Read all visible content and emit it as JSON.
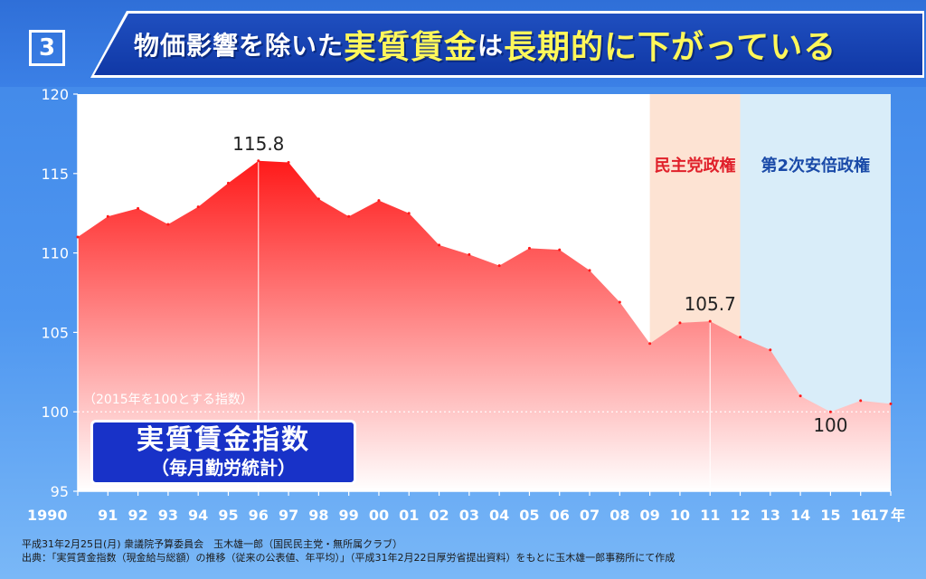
{
  "slide": {
    "number": "3",
    "title_parts": [
      "物価影響を除いた",
      "実質賃金",
      "は",
      "長期的に下がっている"
    ]
  },
  "label_box": {
    "main": "実質賃金指数",
    "sub": "（毎月勤労統計）"
  },
  "footer": {
    "line1": "平成31年2月25日(月) 衆議院予算委員会　玉木雄一郎（国民民主党・無所属クラブ）",
    "line2": "出典：「実質賃金指数（現金給与総額）の推移（従来の公表値、年平均）」（平成31年2月22日厚労省提出資料）をもとに玉木雄一郎事務所にて作成"
  },
  "chart_data": {
    "type": "area",
    "x": [
      "1990",
      "91",
      "92",
      "93",
      "94",
      "95",
      "96",
      "97",
      "98",
      "99",
      "00",
      "01",
      "02",
      "03",
      "04",
      "05",
      "06",
      "07",
      "08",
      "09",
      "10",
      "11",
      "12",
      "13",
      "14",
      "15",
      "16",
      "17"
    ],
    "x_unit": "年",
    "series": [
      {
        "values": [
          111.0,
          112.3,
          112.8,
          111.8,
          112.9,
          114.4,
          115.8,
          115.7,
          113.4,
          112.3,
          113.3,
          112.5,
          110.5,
          109.9,
          109.2,
          110.3,
          110.2,
          108.9,
          106.9,
          104.3,
          105.6,
          105.7,
          104.7,
          103.9,
          101.0,
          100.0,
          100.7,
          100.5
        ]
      }
    ],
    "ylim": [
      95,
      120
    ],
    "yticks": [
      95,
      100,
      105,
      110,
      115,
      120
    ],
    "annotations": [
      {
        "x": "96",
        "text": "115.8"
      },
      {
        "x": "11",
        "text": "105.7"
      },
      {
        "x": "15",
        "text": "100"
      }
    ],
    "periods": [
      {
        "name": "民主党政権",
        "from": "09",
        "to": "12",
        "color": "#fde3d3"
      },
      {
        "name": "第2次安倍政権",
        "from": "12",
        "to": "17",
        "color": "#d9edf9"
      }
    ],
    "base_note": "（2015年を100とする指数）",
    "colors": {
      "area_top": "#ff1a1a",
      "area_bottom": "#ffffff",
      "dem_text": "#e0202a",
      "abe_text": "#1a4aa8"
    }
  }
}
